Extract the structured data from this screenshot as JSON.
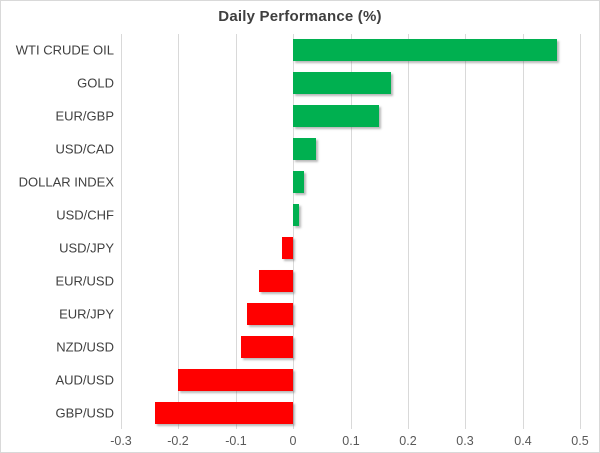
{
  "chart_data": {
    "type": "bar",
    "orientation": "horizontal",
    "title": "Daily Performance (%)",
    "categories": [
      "WTI CRUDE OIL",
      "GOLD",
      "EUR/GBP",
      "USD/CAD",
      "DOLLAR INDEX",
      "USD/CHF",
      "USD/JPY",
      "EUR/USD",
      "EUR/JPY",
      "NZD/USD",
      "AUD/USD",
      "GBP/USD"
    ],
    "values": [
      0.46,
      0.17,
      0.15,
      0.04,
      0.02,
      0.01,
      -0.02,
      -0.06,
      -0.08,
      -0.09,
      -0.2,
      -0.24
    ],
    "xlabel": "",
    "ylabel": "",
    "xlim": [
      -0.3,
      0.5
    ],
    "ticks": [
      -0.3,
      -0.2,
      -0.1,
      0,
      0.1,
      0.2,
      0.3,
      0.4,
      0.5
    ],
    "tick_labels": [
      "-0.3",
      "-0.2",
      "-0.1",
      "0",
      "0.1",
      "0.2",
      "0.3",
      "0.4",
      "0.5"
    ],
    "grid": "vertical-gridlines-on",
    "legend": "none",
    "colors": {
      "positive_bar": "#00B050",
      "negative_bar": "#FF0000",
      "gridline": "#D9D9D9",
      "title_text": "#3F3F3F",
      "category_text": "#404040",
      "tick_text": "#595959"
    }
  }
}
